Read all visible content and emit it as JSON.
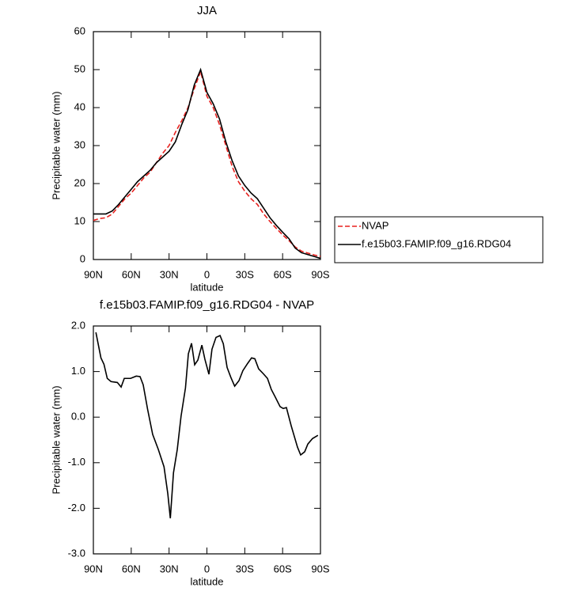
{
  "chart_data": [
    {
      "type": "line",
      "title": "JJA",
      "xlabel": "latitude",
      "ylabel": "Precipitable water (mm)",
      "xlim": [
        90,
        -90
      ],
      "ylim": [
        0,
        60
      ],
      "xticks": [
        {
          "value": 90,
          "label": "90N"
        },
        {
          "value": 60,
          "label": "60N"
        },
        {
          "value": 30,
          "label": "30N"
        },
        0,
        {
          "value": -30,
          "label": "30S"
        },
        {
          "value": -60,
          "label": "60S"
        },
        {
          "value": -90,
          "label": "90S"
        }
      ],
      "yticks": [
        0,
        10,
        20,
        30,
        40,
        50,
        60
      ],
      "legend": "right",
      "x": [
        90,
        85,
        80,
        75,
        70,
        65,
        60,
        55,
        50,
        45,
        40,
        35,
        30,
        25,
        20,
        15,
        10,
        5,
        0,
        -5,
        -10,
        -15,
        -20,
        -25,
        -30,
        -35,
        -40,
        -45,
        -50,
        -55,
        -60,
        -65,
        -70,
        -75,
        -80,
        -85,
        -90
      ],
      "series": [
        {
          "name": "NVAP",
          "color": "#e8211e",
          "linestyle": "dashed",
          "values": [
            10.3,
            10.8,
            11,
            12,
            14,
            16,
            17.5,
            19.5,
            21.5,
            23,
            25.5,
            28,
            30,
            33.5,
            36.5,
            40,
            45,
            49.5,
            43,
            40,
            35.5,
            30,
            24.5,
            20.5,
            18,
            16,
            14.5,
            12,
            10,
            8.2,
            6.5,
            5,
            3.3,
            2.2,
            1.7,
            1.2,
            0.8
          ]
        },
        {
          "name": "f.e15b03.FAMIP.f09_g16.RDG04",
          "color": "#000000",
          "linestyle": "solid",
          "values": [
            12,
            12,
            12,
            12.8,
            14.5,
            16.5,
            18.5,
            20.5,
            22,
            23.5,
            25.5,
            27,
            28.5,
            31,
            35.5,
            39.5,
            46,
            50,
            44,
            41,
            37,
            31,
            26,
            22,
            19.5,
            17.5,
            16,
            13.5,
            11,
            9,
            7.2,
            5.5,
            3,
            1.8,
            1.3,
            0.8,
            0.3
          ]
        }
      ]
    },
    {
      "type": "line",
      "title": "f.e15b03.FAMIP.f09_g16.RDG04 - NVAP",
      "xlabel": "latitude",
      "ylabel": "Precipitable water (mm)",
      "xlim": [
        90,
        -90
      ],
      "ylim": [
        -3,
        2
      ],
      "xticks": [
        {
          "value": 90,
          "label": "90N"
        },
        {
          "value": 60,
          "label": "60N"
        },
        {
          "value": 30,
          "label": "30N"
        },
        0,
        {
          "value": -30,
          "label": "30S"
        },
        {
          "value": -60,
          "label": "60S"
        },
        {
          "value": -90,
          "label": "90S"
        }
      ],
      "yticks": [
        {
          "value": -3,
          "label": "-3.0"
        },
        {
          "value": -2,
          "label": "-2.0"
        },
        {
          "value": -1,
          "label": "-1.0"
        },
        {
          "value": 0,
          "label": "0.0"
        },
        {
          "value": 1,
          "label": "1.0"
        },
        {
          "value": 2,
          "label": "2.0"
        }
      ],
      "color": "#000000",
      "x": [
        88,
        84,
        81.6,
        79,
        76,
        71,
        68,
        65.5,
        60.5,
        56,
        53,
        50.5,
        47,
        43,
        38.5,
        34,
        31,
        29,
        26.5,
        23.5,
        20.5,
        17,
        14.7,
        12.2,
        9.7,
        7.2,
        4,
        1.6,
        -1.6,
        -4,
        -7.2,
        -10.4,
        -13,
        -16,
        -19,
        -22,
        -25.4,
        -28.5,
        -32.3,
        -35.4,
        -38,
        -41,
        -44.8,
        -48,
        -51,
        -54,
        -58,
        -60.5,
        -63,
        -66.8,
        -71.8,
        -74.3,
        -77.5,
        -80,
        -83.7,
        -88
      ],
      "values": [
        1.86,
        1.3,
        1.16,
        0.85,
        0.78,
        0.76,
        0.66,
        0.85,
        0.85,
        0.9,
        0.89,
        0.71,
        0.17,
        -0.38,
        -0.71,
        -1.09,
        -1.68,
        -2.22,
        -1.22,
        -0.71,
        0.02,
        0.64,
        1.39,
        1.62,
        1.15,
        1.25,
        1.58,
        1.27,
        0.94,
        1.49,
        1.75,
        1.79,
        1.61,
        1.09,
        0.87,
        0.68,
        0.8,
        1.02,
        1.18,
        1.3,
        1.28,
        1.06,
        0.95,
        0.85,
        0.61,
        0.45,
        0.23,
        0.19,
        0.21,
        -0.19,
        -0.66,
        -0.83,
        -0.76,
        -0.59,
        -0.47,
        -0.4
      ]
    }
  ]
}
